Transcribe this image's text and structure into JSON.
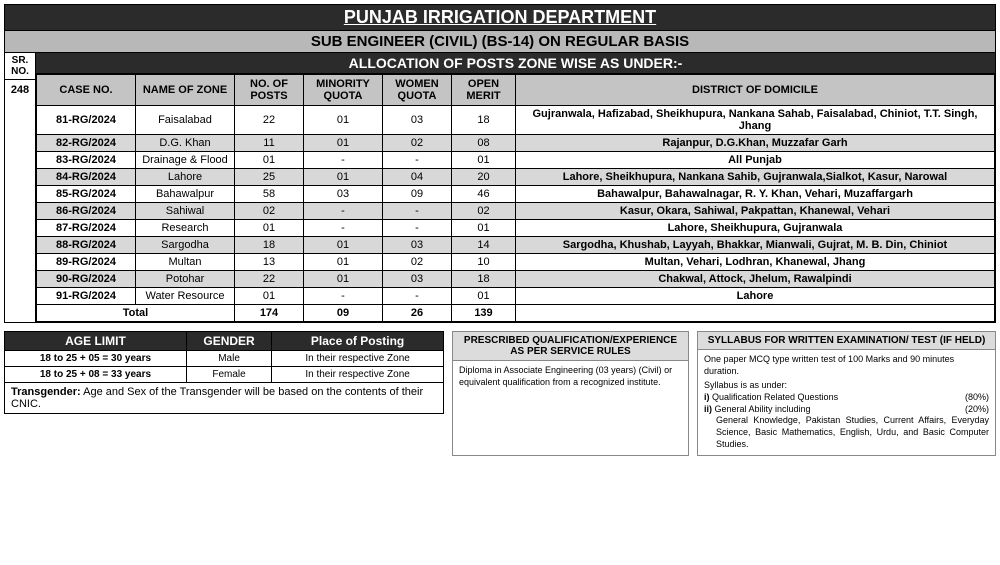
{
  "header": {
    "department": "PUNJAB IRRIGATION DEPARTMENT",
    "post_title": "SUB ENGINEER (CIVIL) (BS-14) ON REGULAR BASIS",
    "sr_head1": "SR.",
    "sr_head2": "NO.",
    "sr_value": "248",
    "alloc_title": "ALLOCATION OF POSTS ZONE WISE AS UNDER:-"
  },
  "posts": {
    "columns": [
      "CASE NO.",
      "NAME OF ZONE",
      "NO. OF POSTS",
      "MINORITY QUOTA",
      "WOMEN QUOTA",
      "OPEN MERIT",
      "DISTRICT OF DOMICILE"
    ],
    "rows": [
      {
        "case": "81-RG/2024",
        "zone": "Faisalabad",
        "posts": "22",
        "min": "01",
        "women": "03",
        "open": "18",
        "dist": "Gujranwala, Hafizabad, Sheikhupura, Nankana Sahab, Faisalabad, Chiniot, T.T. Singh, Jhang",
        "alt": false
      },
      {
        "case": "82-RG/2024",
        "zone": "D.G. Khan",
        "posts": "11",
        "min": "01",
        "women": "02",
        "open": "08",
        "dist": "Rajanpur, D.G.Khan,  Muzzafar Garh",
        "alt": true
      },
      {
        "case": "83-RG/2024",
        "zone": "Drainage & Flood",
        "posts": "01",
        "min": "-",
        "women": "-",
        "open": "01",
        "dist": "All Punjab",
        "alt": false
      },
      {
        "case": "84-RG/2024",
        "zone": "Lahore",
        "posts": "25",
        "min": "01",
        "women": "04",
        "open": "20",
        "dist": "Lahore, Sheikhupura, Nankana Sahib, Gujranwala,Sialkot, Kasur, Narowal",
        "alt": true
      },
      {
        "case": "85-RG/2024",
        "zone": "Bahawalpur",
        "posts": "58",
        "min": "03",
        "women": "09",
        "open": "46",
        "dist": "Bahawalpur, Bahawalnagar, R. Y. Khan, Vehari, Muzaffargarh",
        "alt": false
      },
      {
        "case": "86-RG/2024",
        "zone": "Sahiwal",
        "posts": "02",
        "min": "-",
        "women": "-",
        "open": "02",
        "dist": "Kasur, Okara, Sahiwal, Pakpattan, Khanewal, Vehari",
        "alt": true
      },
      {
        "case": "87-RG/2024",
        "zone": "Research",
        "posts": "01",
        "min": "-",
        "women": "-",
        "open": "01",
        "dist": "Lahore, Sheikhupura, Gujranwala",
        "alt": false
      },
      {
        "case": "88-RG/2024",
        "zone": "Sargodha",
        "posts": "18",
        "min": "01",
        "women": "03",
        "open": "14",
        "dist": "Sargodha, Khushab, Layyah, Bhakkar, Mianwali, Gujrat, M. B. Din, Chiniot",
        "alt": true
      },
      {
        "case": "89-RG/2024",
        "zone": "Multan",
        "posts": "13",
        "min": "01",
        "women": "02",
        "open": "10",
        "dist": "Multan,  Vehari, Lodhran, Khanewal, Jhang",
        "alt": false
      },
      {
        "case": "90-RG/2024",
        "zone": "Potohar",
        "posts": "22",
        "min": "01",
        "women": "03",
        "open": "18",
        "dist": "Chakwal, Attock, Jhelum, Rawalpindi",
        "alt": true
      },
      {
        "case": "91-RG/2024",
        "zone": "Water Resource",
        "posts": "01",
        "min": "-",
        "women": "-",
        "open": "01",
        "dist": "Lahore",
        "alt": false
      }
    ],
    "total": {
      "label": "Total",
      "posts": "174",
      "min": "09",
      "women": "26",
      "open": "139"
    }
  },
  "age_gender": {
    "headers": [
      "AGE LIMIT",
      "GENDER",
      "Place of Posting"
    ],
    "rows": [
      {
        "age": "18 to 25 + 05 = 30 years",
        "gender": "Male",
        "place": "In their respective Zone"
      },
      {
        "age": "18 to 25 + 08 = 33 years",
        "gender": "Female",
        "place": "In their respective Zone"
      }
    ],
    "note_label": "Transgender:",
    "note_text": " Age and Sex of the Transgender will be based on the contents of their CNIC."
  },
  "qualification": {
    "title": "PRESCRIBED QUALIFICATION/EXPERIENCE AS PER SERVICE RULES",
    "body": "Diploma in Associate Engineering (03 years) (Civil) or equivalent qualification from a recognized institute."
  },
  "syllabus": {
    "title": "SYLLABUS FOR WRITTEN EXAMINATION/ TEST (IF HELD)",
    "intro": "One paper MCQ type written test of 100 Marks and 90 minutes duration.",
    "sub": "Syllabus is as under:",
    "i_label": "i)",
    "i_text": " Qualification Related Questions",
    "i_pct": "(80%)",
    "ii_label": "ii)",
    "ii_text": " General Ability including",
    "ii_pct": "(20%)",
    "detail": "General Knowledge, Pakistan Studies, Current Affairs, Everyday Science, Basic Mathematics, English, Urdu, and Basic Computer Studies."
  }
}
